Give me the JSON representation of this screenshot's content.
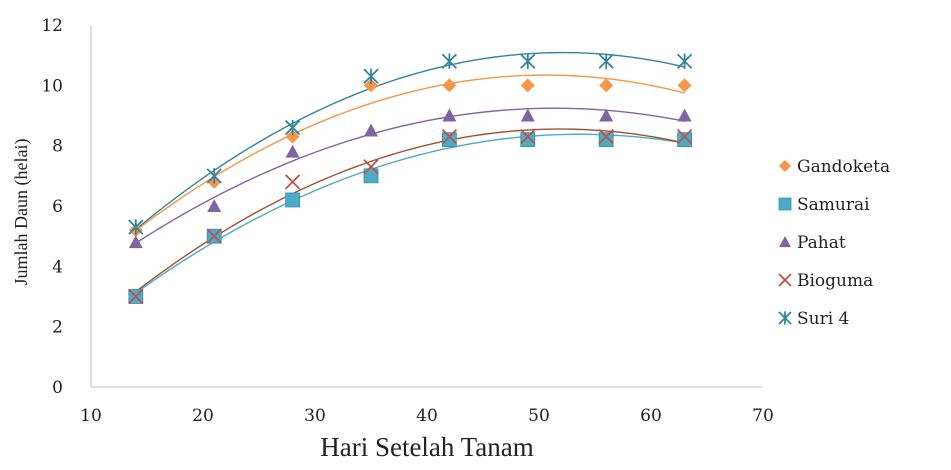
{
  "chart_data": {
    "type": "scatter",
    "title": "",
    "xlabel": "Hari Setelah Tanam",
    "ylabel": "Jumlah Daun (helai)",
    "xlim": [
      10,
      70
    ],
    "ylim": [
      0,
      12
    ],
    "x_ticks": [
      "10",
      "20",
      "30",
      "40",
      "50",
      "60",
      "70"
    ],
    "y_ticks": [
      "0",
      "2",
      "4",
      "6",
      "8",
      "10",
      "12"
    ],
    "grid": false,
    "legend_position": "right",
    "trendline": "polynomial-2",
    "x": [
      14,
      21,
      28,
      35,
      42,
      49,
      56,
      63
    ],
    "series": [
      {
        "name": "Gandoketa",
        "marker": "diamond",
        "color": "#F79646",
        "values": [
          5.2,
          6.8,
          8.3,
          10.0,
          10.0,
          10.0,
          10.0,
          10.0
        ]
      },
      {
        "name": "Samurai",
        "marker": "square",
        "color": "#4BACC6",
        "values": [
          3.0,
          5.0,
          6.2,
          7.0,
          8.2,
          8.2,
          8.2,
          8.2
        ]
      },
      {
        "name": "Pahat",
        "marker": "triangle",
        "color": "#8064A2",
        "values": [
          4.8,
          6.0,
          7.8,
          8.5,
          9.0,
          9.0,
          9.0,
          9.0
        ]
      },
      {
        "name": "Bioguma",
        "marker": "x",
        "color": "#C0504D",
        "values": [
          3.0,
          5.0,
          6.8,
          7.3,
          8.3,
          8.3,
          8.3,
          8.3
        ]
      },
      {
        "name": "Suri 4",
        "marker": "star",
        "color": "#31859C",
        "values": [
          5.3,
          7.0,
          8.6,
          10.3,
          10.8,
          10.8,
          10.8,
          10.8
        ]
      }
    ]
  },
  "colors": {
    "trend_Gandoketa": "#F79646",
    "trend_Samurai": "#4BACC6",
    "trend_Pahat": "#8064A2",
    "trend_Bioguma": "#A0522D",
    "trend_Suri 4": "#31859C"
  }
}
